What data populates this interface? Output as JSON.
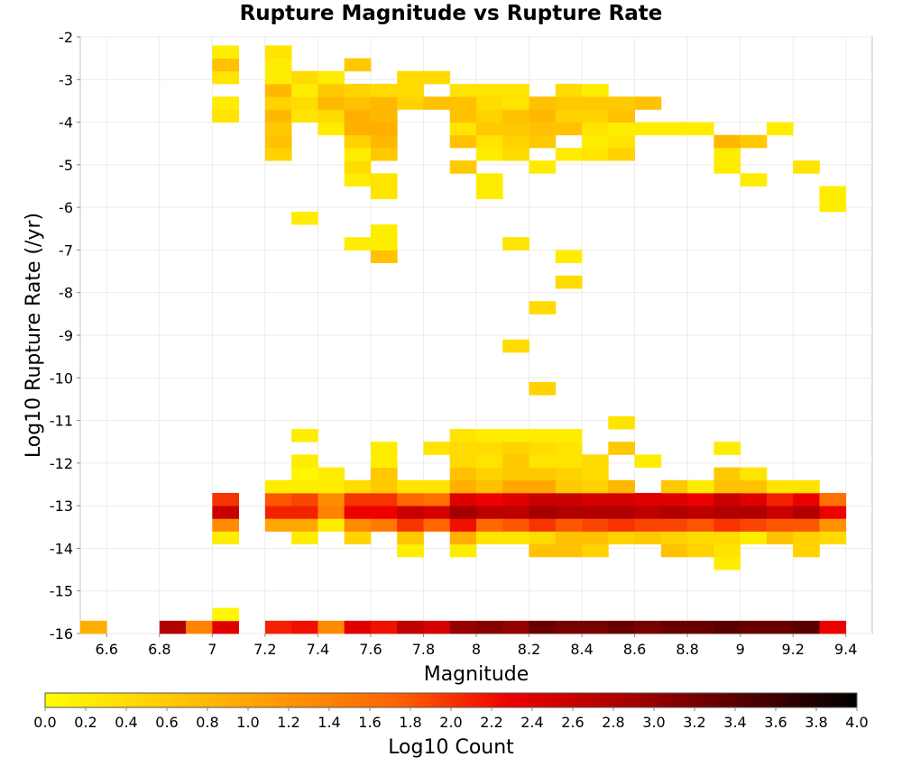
{
  "chart_data": {
    "type": "heatmap",
    "title": "Rupture Magnitude vs Rupture Rate",
    "xlabel": "Magnitude",
    "ylabel": "Log10 Rupture Rate (/yr)",
    "colorbar_label": "Log10 Count",
    "xlim": [
      6.5,
      9.5
    ],
    "ylim": [
      -16,
      -2
    ],
    "xticks": [
      "6.6",
      "6.8",
      "7",
      "7.2",
      "7.4",
      "7.6",
      "7.8",
      "8",
      "8.2",
      "8.4",
      "8.6",
      "8.8",
      "9",
      "9.2",
      "9.4"
    ],
    "yticks": [
      "-2",
      "-3",
      "-4",
      "-5",
      "-6",
      "-7",
      "-8",
      "-9",
      "-10",
      "-11",
      "-12",
      "-13",
      "-14",
      "-15",
      "-16"
    ],
    "colorbar_ticks": [
      "0.0",
      "0.2",
      "0.4",
      "0.6",
      "0.8",
      "1.0",
      "1.2",
      "1.4",
      "1.6",
      "1.8",
      "2.0",
      "2.2",
      "2.4",
      "2.6",
      "2.8",
      "3.0",
      "3.2",
      "3.4",
      "3.6",
      "3.8",
      "4.0"
    ],
    "colorbar_range": [
      0,
      4
    ],
    "colorscale": [
      "#ffff00",
      "#ffcc00",
      "#ff9900",
      "#ff6600",
      "#ee0000",
      "#aa0000",
      "#550000",
      "#000000"
    ],
    "cell_size": {
      "dx": 0.1,
      "dy": 0.3
    },
    "cells": [
      [
        6.55,
        -15.85,
        0.9
      ],
      [
        6.85,
        -15.85,
        2.8
      ],
      [
        6.95,
        -15.85,
        1.4
      ],
      [
        7.05,
        -15.85,
        2.4
      ],
      [
        7.05,
        -15.55,
        0.1
      ],
      [
        7.05,
        -13.75,
        0.2
      ],
      [
        7.05,
        -13.45,
        1.3
      ],
      [
        7.05,
        -13.15,
        2.6
      ],
      [
        7.05,
        -12.85,
        2.0
      ],
      [
        7.05,
        -3.85,
        0.3
      ],
      [
        7.05,
        -3.55,
        0.2
      ],
      [
        7.05,
        -2.95,
        0.3
      ],
      [
        7.05,
        -2.65,
        0.7
      ],
      [
        7.05,
        -2.35,
        0.2
      ],
      [
        7.25,
        -15.85,
        2.1
      ],
      [
        7.35,
        -15.85,
        2.2
      ],
      [
        7.45,
        -15.85,
        1.3
      ],
      [
        7.55,
        -15.85,
        2.4
      ],
      [
        7.65,
        -15.85,
        2.2
      ],
      [
        7.75,
        -15.85,
        2.7
      ],
      [
        7.85,
        -15.85,
        2.5
      ],
      [
        7.95,
        -15.85,
        3.0
      ],
      [
        8.05,
        -15.85,
        3.1
      ],
      [
        8.15,
        -15.85,
        3.0
      ],
      [
        8.25,
        -15.85,
        3.3
      ],
      [
        8.35,
        -15.85,
        3.2
      ],
      [
        8.45,
        -15.85,
        3.2
      ],
      [
        8.55,
        -15.85,
        3.3
      ],
      [
        8.65,
        -15.85,
        3.2
      ],
      [
        8.75,
        -15.85,
        3.3
      ],
      [
        8.85,
        -15.85,
        3.3
      ],
      [
        8.95,
        -15.85,
        3.4
      ],
      [
        9.05,
        -15.85,
        3.3
      ],
      [
        9.15,
        -15.85,
        3.3
      ],
      [
        9.25,
        -15.85,
        3.4
      ],
      [
        9.35,
        -15.85,
        2.3
      ],
      [
        7.25,
        -13.45,
        1.0
      ],
      [
        7.25,
        -13.15,
        2.1
      ],
      [
        7.25,
        -12.85,
        1.8
      ],
      [
        7.25,
        -12.55,
        0.2
      ],
      [
        7.35,
        -13.75,
        0.2
      ],
      [
        7.35,
        -13.45,
        1.0
      ],
      [
        7.35,
        -13.15,
        2.1
      ],
      [
        7.35,
        -12.85,
        1.9
      ],
      [
        7.35,
        -12.55,
        0.2
      ],
      [
        7.35,
        -12.25,
        0.1
      ],
      [
        7.35,
        -11.95,
        0.2
      ],
      [
        7.35,
        -11.35,
        0.2
      ],
      [
        7.45,
        -13.45,
        0.2
      ],
      [
        7.45,
        -13.15,
        1.4
      ],
      [
        7.45,
        -12.85,
        1.3
      ],
      [
        7.45,
        -12.55,
        0.2
      ],
      [
        7.45,
        -12.25,
        0.2
      ],
      [
        7.55,
        -13.75,
        0.5
      ],
      [
        7.55,
        -13.45,
        1.3
      ],
      [
        7.55,
        -13.15,
        2.3
      ],
      [
        7.55,
        -12.85,
        2.0
      ],
      [
        7.55,
        -12.55,
        0.4
      ],
      [
        7.65,
        -13.45,
        1.5
      ],
      [
        7.65,
        -13.15,
        2.3
      ],
      [
        7.65,
        -12.85,
        2.0
      ],
      [
        7.65,
        -12.55,
        0.6
      ],
      [
        7.65,
        -12.25,
        0.6
      ],
      [
        7.65,
        -11.95,
        0.2
      ],
      [
        7.65,
        -11.65,
        0.2
      ],
      [
        7.75,
        -14.05,
        0.2
      ],
      [
        7.75,
        -13.75,
        0.6
      ],
      [
        7.75,
        -13.45,
        2.0
      ],
      [
        7.75,
        -13.15,
        2.6
      ],
      [
        7.75,
        -12.85,
        1.7
      ],
      [
        7.75,
        -12.55,
        0.3
      ],
      [
        7.85,
        -13.45,
        1.7
      ],
      [
        7.85,
        -13.15,
        2.5
      ],
      [
        7.85,
        -12.85,
        1.6
      ],
      [
        7.85,
        -12.55,
        0.3
      ],
      [
        7.85,
        -11.65,
        0.3
      ],
      [
        7.95,
        -14.05,
        0.2
      ],
      [
        7.95,
        -13.75,
        0.9
      ],
      [
        7.95,
        -13.45,
        2.2
      ],
      [
        7.95,
        -13.15,
        2.9
      ],
      [
        7.95,
        -12.85,
        2.4
      ],
      [
        7.95,
        -12.55,
        0.9
      ],
      [
        7.95,
        -12.25,
        0.7
      ],
      [
        7.95,
        -11.95,
        0.4
      ],
      [
        7.95,
        -11.65,
        0.4
      ],
      [
        7.95,
        -11.35,
        0.3
      ],
      [
        8.05,
        -13.75,
        0.3
      ],
      [
        8.05,
        -13.45,
        1.7
      ],
      [
        8.05,
        -13.15,
        2.7
      ],
      [
        8.05,
        -12.85,
        2.3
      ],
      [
        8.05,
        -12.55,
        0.7
      ],
      [
        8.05,
        -12.25,
        0.5
      ],
      [
        8.05,
        -11.95,
        0.3
      ],
      [
        8.05,
        -11.65,
        0.4
      ],
      [
        8.05,
        -11.35,
        0.2
      ],
      [
        8.15,
        -13.75,
        0.3
      ],
      [
        8.15,
        -13.45,
        1.8
      ],
      [
        8.15,
        -13.15,
        2.7
      ],
      [
        8.15,
        -12.85,
        2.4
      ],
      [
        8.15,
        -12.55,
        1.0
      ],
      [
        8.15,
        -12.25,
        0.6
      ],
      [
        8.15,
        -11.95,
        0.6
      ],
      [
        8.15,
        -11.65,
        0.5
      ],
      [
        8.15,
        -11.35,
        0.2
      ],
      [
        8.25,
        -14.05,
        0.7
      ],
      [
        8.25,
        -13.75,
        0.4
      ],
      [
        8.25,
        -13.45,
        2.0
      ],
      [
        8.25,
        -13.15,
        2.9
      ],
      [
        8.25,
        -12.85,
        2.6
      ],
      [
        8.25,
        -12.55,
        1.0
      ],
      [
        8.25,
        -12.25,
        0.6
      ],
      [
        8.25,
        -11.95,
        0.3
      ],
      [
        8.25,
        -11.65,
        0.4
      ],
      [
        8.25,
        -11.35,
        0.2
      ],
      [
        8.35,
        -14.05,
        0.7
      ],
      [
        8.35,
        -13.75,
        0.7
      ],
      [
        8.35,
        -13.45,
        1.8
      ],
      [
        8.35,
        -13.15,
        2.8
      ],
      [
        8.35,
        -12.85,
        2.6
      ],
      [
        8.35,
        -12.55,
        0.6
      ],
      [
        8.35,
        -12.25,
        0.5
      ],
      [
        8.35,
        -11.95,
        0.3
      ],
      [
        8.35,
        -11.65,
        0.3
      ],
      [
        8.35,
        -11.35,
        0.2
      ],
      [
        8.45,
        -14.05,
        0.5
      ],
      [
        8.45,
        -13.75,
        0.7
      ],
      [
        8.45,
        -13.45,
        1.9
      ],
      [
        8.45,
        -13.15,
        2.8
      ],
      [
        8.45,
        -12.85,
        2.5
      ],
      [
        8.45,
        -12.55,
        0.5
      ],
      [
        8.45,
        -12.25,
        0.4
      ],
      [
        8.45,
        -11.95,
        0.4
      ],
      [
        8.55,
        -13.75,
        0.5
      ],
      [
        8.55,
        -13.45,
        2.0
      ],
      [
        8.55,
        -13.15,
        2.8
      ],
      [
        8.55,
        -12.85,
        2.5
      ],
      [
        8.55,
        -12.55,
        0.8
      ],
      [
        8.55,
        -11.65,
        0.6
      ],
      [
        8.55,
        -11.05,
        0.3
      ],
      [
        8.65,
        -13.75,
        0.6
      ],
      [
        8.65,
        -13.45,
        1.9
      ],
      [
        8.65,
        -13.15,
        2.7
      ],
      [
        8.65,
        -12.85,
        2.4
      ],
      [
        8.65,
        -11.95,
        0.2
      ],
      [
        8.75,
        -14.05,
        0.7
      ],
      [
        8.75,
        -13.75,
        0.5
      ],
      [
        8.75,
        -13.45,
        1.9
      ],
      [
        8.75,
        -13.15,
        2.8
      ],
      [
        8.75,
        -12.85,
        2.4
      ],
      [
        8.75,
        -12.55,
        0.6
      ],
      [
        8.85,
        -14.05,
        0.5
      ],
      [
        8.85,
        -13.75,
        0.4
      ],
      [
        8.85,
        -13.45,
        1.8
      ],
      [
        8.85,
        -13.15,
        2.7
      ],
      [
        8.85,
        -12.85,
        2.3
      ],
      [
        8.85,
        -12.55,
        0.2
      ],
      [
        8.95,
        -14.35,
        0.2
      ],
      [
        8.95,
        -14.05,
        0.3
      ],
      [
        8.95,
        -13.75,
        0.4
      ],
      [
        8.95,
        -13.45,
        2.0
      ],
      [
        8.95,
        -13.15,
        2.8
      ],
      [
        8.95,
        -12.85,
        2.6
      ],
      [
        8.95,
        -12.55,
        0.7
      ],
      [
        8.95,
        -12.25,
        0.6
      ],
      [
        8.95,
        -11.65,
        0.2
      ],
      [
        9.05,
        -13.75,
        0.2
      ],
      [
        9.05,
        -13.45,
        1.9
      ],
      [
        9.05,
        -13.15,
        2.8
      ],
      [
        9.05,
        -12.85,
        2.4
      ],
      [
        9.05,
        -12.55,
        0.7
      ],
      [
        9.05,
        -12.25,
        0.3
      ],
      [
        9.15,
        -13.75,
        0.7
      ],
      [
        9.15,
        -13.45,
        1.8
      ],
      [
        9.15,
        -13.15,
        2.6
      ],
      [
        9.15,
        -12.85,
        2.1
      ],
      [
        9.15,
        -12.55,
        0.3
      ],
      [
        9.25,
        -14.05,
        0.5
      ],
      [
        9.25,
        -13.75,
        0.5
      ],
      [
        9.25,
        -13.45,
        1.8
      ],
      [
        9.25,
        -13.15,
        2.8
      ],
      [
        9.25,
        -12.85,
        2.3
      ],
      [
        9.25,
        -12.55,
        0.3
      ],
      [
        9.35,
        -13.75,
        0.4
      ],
      [
        9.35,
        -13.45,
        1.2
      ],
      [
        9.35,
        -13.15,
        2.3
      ],
      [
        9.35,
        -12.85,
        1.6
      ],
      [
        7.25,
        -4.75,
        0.5
      ],
      [
        7.25,
        -4.45,
        0.7
      ],
      [
        7.25,
        -4.15,
        0.6
      ],
      [
        7.25,
        -3.85,
        0.8
      ],
      [
        7.25,
        -3.55,
        0.5
      ],
      [
        7.25,
        -3.25,
        0.8
      ],
      [
        7.25,
        -2.95,
        0.2
      ],
      [
        7.25,
        -2.65,
        0.2
      ],
      [
        7.25,
        -2.35,
        0.3
      ],
      [
        7.35,
        -6.25,
        0.2
      ],
      [
        7.35,
        -3.85,
        0.3
      ],
      [
        7.35,
        -3.55,
        0.4
      ],
      [
        7.35,
        -3.25,
        0.2
      ],
      [
        7.35,
        -2.95,
        0.4
      ],
      [
        7.45,
        -4.15,
        0.2
      ],
      [
        7.45,
        -3.85,
        0.4
      ],
      [
        7.45,
        -3.55,
        0.8
      ],
      [
        7.45,
        -3.25,
        0.6
      ],
      [
        7.45,
        -2.95,
        0.2
      ],
      [
        7.55,
        -6.85,
        0.2
      ],
      [
        7.55,
        -5.35,
        0.2
      ],
      [
        7.55,
        -5.05,
        0.4
      ],
      [
        7.55,
        -4.75,
        0.2
      ],
      [
        7.55,
        -4.45,
        0.5
      ],
      [
        7.55,
        -4.15,
        0.9
      ],
      [
        7.55,
        -3.85,
        0.9
      ],
      [
        7.55,
        -3.55,
        0.7
      ],
      [
        7.55,
        -3.25,
        0.5
      ],
      [
        7.55,
        -2.65,
        0.6
      ],
      [
        7.65,
        -7.15,
        0.7
      ],
      [
        7.65,
        -6.85,
        0.2
      ],
      [
        7.65,
        -6.55,
        0.2
      ],
      [
        7.65,
        -5.65,
        0.3
      ],
      [
        7.65,
        -5.35,
        0.3
      ],
      [
        7.65,
        -4.75,
        0.6
      ],
      [
        7.65,
        -4.45,
        0.8
      ],
      [
        7.65,
        -4.15,
        0.9
      ],
      [
        7.65,
        -3.85,
        0.8
      ],
      [
        7.65,
        -3.55,
        0.8
      ],
      [
        7.65,
        -3.25,
        0.4
      ],
      [
        7.75,
        -3.55,
        0.5
      ],
      [
        7.75,
        -3.25,
        0.4
      ],
      [
        7.75,
        -2.95,
        0.4
      ],
      [
        7.85,
        -3.55,
        0.7
      ],
      [
        7.85,
        -2.95,
        0.4
      ],
      [
        7.95,
        -5.05,
        0.6
      ],
      [
        7.95,
        -4.45,
        0.7
      ],
      [
        7.95,
        -4.15,
        0.3
      ],
      [
        7.95,
        -3.85,
        0.7
      ],
      [
        7.95,
        -3.55,
        0.7
      ],
      [
        7.95,
        -3.25,
        0.3
      ],
      [
        8.05,
        -5.65,
        0.2
      ],
      [
        8.05,
        -5.35,
        0.2
      ],
      [
        8.05,
        -4.75,
        0.2
      ],
      [
        8.05,
        -4.45,
        0.3
      ],
      [
        8.05,
        -4.15,
        0.6
      ],
      [
        8.05,
        -3.85,
        0.5
      ],
      [
        8.05,
        -3.55,
        0.4
      ],
      [
        8.05,
        -3.25,
        0.3
      ],
      [
        8.15,
        -9.25,
        0.4
      ],
      [
        8.15,
        -6.85,
        0.3
      ],
      [
        8.15,
        -4.75,
        0.4
      ],
      [
        8.15,
        -4.45,
        0.5
      ],
      [
        8.15,
        -4.15,
        0.6
      ],
      [
        8.15,
        -3.85,
        0.7
      ],
      [
        8.15,
        -3.55,
        0.3
      ],
      [
        8.15,
        -3.25,
        0.3
      ],
      [
        8.25,
        -10.25,
        0.5
      ],
      [
        8.25,
        -8.35,
        0.4
      ],
      [
        8.25,
        -5.05,
        0.2
      ],
      [
        8.25,
        -4.45,
        0.6
      ],
      [
        8.25,
        -4.15,
        0.7
      ],
      [
        8.25,
        -3.85,
        0.8
      ],
      [
        8.25,
        -3.55,
        0.7
      ],
      [
        8.35,
        -7.75,
        0.4
      ],
      [
        8.35,
        -7.15,
        0.2
      ],
      [
        8.35,
        -4.75,
        0.2
      ],
      [
        8.35,
        -4.15,
        0.7
      ],
      [
        8.35,
        -3.85,
        0.5
      ],
      [
        8.35,
        -3.55,
        0.6
      ],
      [
        8.35,
        -3.25,
        0.4
      ],
      [
        8.45,
        -4.75,
        0.3
      ],
      [
        8.45,
        -4.45,
        0.2
      ],
      [
        8.45,
        -4.15,
        0.3
      ],
      [
        8.45,
        -3.85,
        0.5
      ],
      [
        8.45,
        -3.55,
        0.6
      ],
      [
        8.45,
        -3.25,
        0.2
      ],
      [
        8.55,
        -4.75,
        0.5
      ],
      [
        8.55,
        -4.45,
        0.3
      ],
      [
        8.55,
        -4.15,
        0.2
      ],
      [
        8.55,
        -3.85,
        0.7
      ],
      [
        8.55,
        -3.55,
        0.6
      ],
      [
        8.65,
        -4.15,
        0.2
      ],
      [
        8.65,
        -3.55,
        0.7
      ],
      [
        8.75,
        -4.15,
        0.2
      ],
      [
        8.85,
        -4.15,
        0.2
      ],
      [
        8.95,
        -5.05,
        0.2
      ],
      [
        8.95,
        -4.75,
        0.2
      ],
      [
        8.95,
        -4.45,
        0.8
      ],
      [
        9.05,
        -5.35,
        0.2
      ],
      [
        9.05,
        -4.45,
        0.6
      ],
      [
        9.15,
        -4.15,
        0.2
      ],
      [
        9.25,
        -5.05,
        0.3
      ],
      [
        9.35,
        -5.95,
        0.2
      ],
      [
        9.35,
        -5.65,
        0.2
      ]
    ]
  }
}
